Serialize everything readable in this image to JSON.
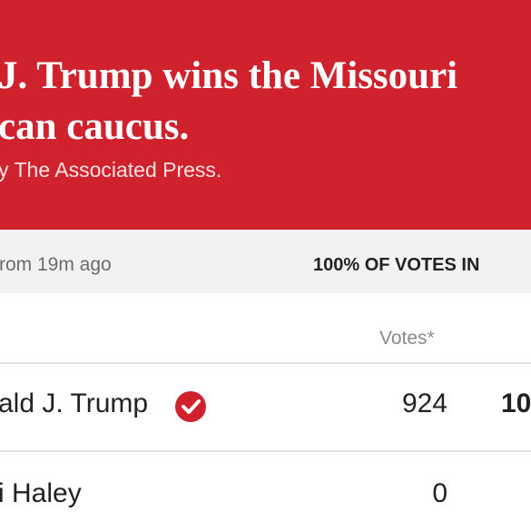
{
  "header": {
    "headline": [
      "J. Trump wins the Missouri",
      "can caucus."
    ],
    "source": "y The Associated Press."
  },
  "status": {
    "updated": "rom 19m ago",
    "reporting": "100% OF VOTES IN"
  },
  "table": {
    "columns": [
      "Votes*"
    ],
    "rows": [
      [
        "ald J. Trump",
        924,
        "10"
      ],
      [
        "i Haley",
        0
      ]
    ]
  }
}
